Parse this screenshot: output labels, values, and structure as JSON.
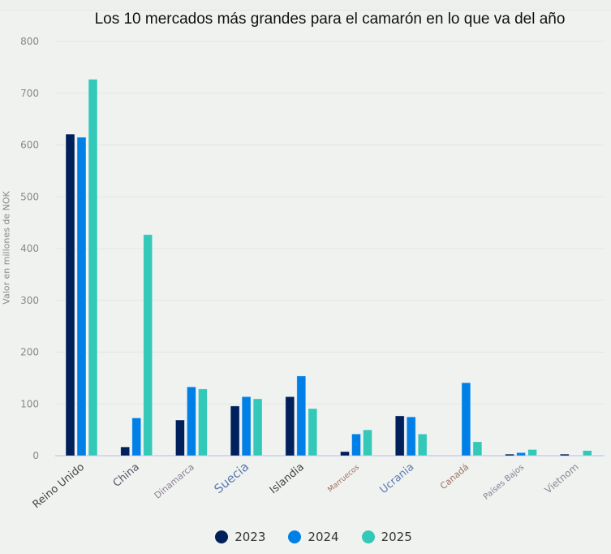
{
  "chart_data": {
    "type": "bar",
    "title": "Los 10 mercados más grandes para el camarón en lo que va del año",
    "xlabel": "",
    "ylabel": "Valor en millones de NOK",
    "ylim": [
      0,
      800
    ],
    "yticks": [
      0,
      100,
      200,
      300,
      400,
      500,
      600,
      700,
      800
    ],
    "grid": true,
    "legend_position": "bottom",
    "categories": [
      "Reino Unido",
      "China",
      "Dinamarca",
      "Suecia",
      "Islandia",
      "Marruecos",
      "Ucrania",
      "Canadá",
      "Países Bajos",
      "Vietnom"
    ],
    "category_label_colors": [
      "#444444",
      "#555566",
      "#8a7f95",
      "#5a7ab0",
      "#444444",
      "#a07060",
      "#5a7ab0",
      "#9a7468",
      "#8a7f95",
      "#8a8a98"
    ],
    "series": [
      {
        "name": "2023",
        "color": "#00205b",
        "values": [
          621,
          17,
          69,
          96,
          114,
          8,
          77,
          0,
          3,
          3
        ]
      },
      {
        "name": "2024",
        "color": "#0080e6",
        "values": [
          615,
          73,
          133,
          114,
          154,
          42,
          75,
          141,
          6,
          0
        ]
      },
      {
        "name": "2025",
        "color": "#33c8b8",
        "values": [
          727,
          427,
          129,
          110,
          91,
          50,
          42,
          27,
          12,
          10
        ]
      }
    ]
  },
  "legend": [
    {
      "label": "2023",
      "color": "#00205b"
    },
    {
      "label": "2024",
      "color": "#0080e6"
    },
    {
      "label": "2025",
      "color": "#33c8b8"
    }
  ]
}
